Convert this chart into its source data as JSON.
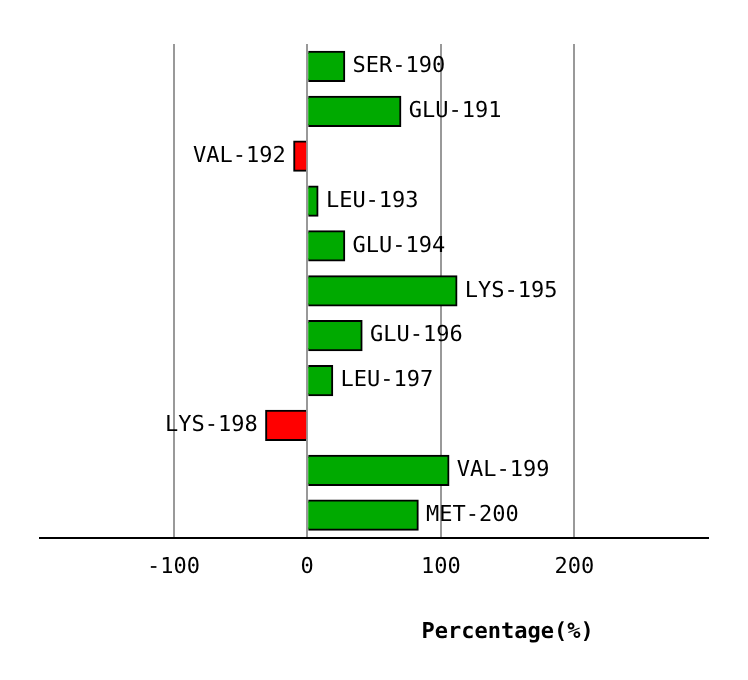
{
  "chart_data": {
    "type": "bar",
    "orientation": "horizontal",
    "xlabel": "Percentage(%)",
    "categories": [
      "SER-190",
      "GLU-191",
      "VAL-192",
      "LEU-193",
      "GLU-194",
      "LYS-195",
      "GLU-196",
      "LEU-197",
      "LYS-198",
      "VAL-199",
      "MET-200"
    ],
    "values": [
      28,
      70,
      -10,
      8,
      28,
      112,
      41,
      19,
      -31,
      106,
      83
    ],
    "colors": [
      "#00aa00",
      "#00aa00",
      "#ff0000",
      "#00aa00",
      "#00aa00",
      "#00aa00",
      "#00aa00",
      "#00aa00",
      "#ff0000",
      "#00aa00",
      "#00aa00"
    ],
    "xlim": [
      -200,
      300
    ],
    "xticks": [
      -100,
      0,
      100,
      200
    ],
    "grid": "x",
    "legend": false
  }
}
